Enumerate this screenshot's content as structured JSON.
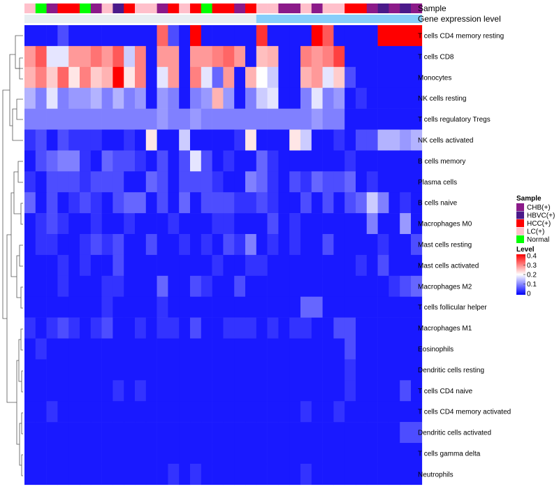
{
  "chart_data": {
    "type": "heatmap",
    "annotation_labels": {
      "sample": "Sample",
      "expression": "Gene expression level"
    },
    "rows": [
      "T cells CD4 memory resting",
      "T cells CD8",
      "Monocytes",
      "NK cells resting",
      "T cells regulatory  Tregs",
      "NK cells activated",
      "B cells memory",
      "Plasma cells",
      "B cells naive",
      "Macrophages M0",
      "Mast cells resting",
      "Mast cells activated",
      "Macrophages M2",
      "T cells follicular helper",
      "Macrophages M1",
      "Eosinophils",
      "Dendritic cells resting",
      "T cells CD4 naive",
      "T cells CD4 memory activated",
      "Dendritic cells activated",
      "T cells gamma delta",
      "Neutrophils"
    ],
    "column_samples": [
      "LC(+)",
      "Normal",
      "CHB(+)",
      "HCC(+)",
      "HCC(+)",
      "Normal",
      "CHB(+)",
      "LC(+)",
      "HBVC(+)",
      "HCC(+)",
      "LC(+)",
      "LC(+)",
      "CHB(+)",
      "HCC(+)",
      "LC(+)",
      "HCC(+)",
      "Normal",
      "HCC(+)",
      "HCC(+)",
      "CHB(+)",
      "HCC(+)",
      "LC(+)",
      "LC(+)",
      "CHB(+)",
      "CHB(+)",
      "LC(+)",
      "CHB(+)",
      "LC(+)",
      "LC(+)",
      "HCC(+)",
      "HCC(+)",
      "CHB(+)",
      "HBVC(+)",
      "CHB(+)",
      "HBVC(+)",
      "CHB(+)"
    ],
    "expression_bar": [
      "#e8eef2",
      "#e8eef2",
      "#e8eef2",
      "#e8eef2",
      "#e8eef2",
      "#e8eef2",
      "#e8eef2",
      "#e8eef2",
      "#e8eef2",
      "#e8eef2",
      "#e8eef2",
      "#e8eef2",
      "#e8eef2",
      "#e8eef2",
      "#e8eef2",
      "#e8eef2",
      "#e8eef2",
      "#e8eef2",
      "#e8eef2",
      "#e8eef2",
      "#e8eef2",
      "#87cefa",
      "#87cefa",
      "#87cefa",
      "#87cefa",
      "#87cefa",
      "#87cefa",
      "#87cefa",
      "#87cefa",
      "#87cefa",
      "#87cefa",
      "#87cefa",
      "#87cefa",
      "#87cefa",
      "#87cefa",
      "#87cefa"
    ],
    "values": [
      [
        0.02,
        0.02,
        0.02,
        0.06,
        0.02,
        0.02,
        0.02,
        0.02,
        0.02,
        0.02,
        0.02,
        0.02,
        0.32,
        0.06,
        0.02,
        0.4,
        0.02,
        0.02,
        0.02,
        0.02,
        0.02,
        0.36,
        0.02,
        0.02,
        0.02,
        0.02,
        0.4,
        0.33,
        0.02,
        0.02,
        0.02,
        0.02,
        0.4,
        0.4,
        0.4,
        0.4
      ],
      [
        0.28,
        0.33,
        0.18,
        0.18,
        0.28,
        0.28,
        0.31,
        0.28,
        0.33,
        0.16,
        0.3,
        0.02,
        0.28,
        0.28,
        0.02,
        0.28,
        0.28,
        0.3,
        0.32,
        0.28,
        0.02,
        0.25,
        0.26,
        0.02,
        0.02,
        0.3,
        0.28,
        0.3,
        0.35,
        0.02,
        0.02,
        0.02,
        0.02,
        0.02,
        0.02,
        0.02
      ],
      [
        0.26,
        0.3,
        0.24,
        0.32,
        0.22,
        0.3,
        0.24,
        0.26,
        0.4,
        0.22,
        0.3,
        0.02,
        0.18,
        0.28,
        0.02,
        0.3,
        0.18,
        0.08,
        0.28,
        0.02,
        0.26,
        0.2,
        0.16,
        0.02,
        0.02,
        0.26,
        0.28,
        0.18,
        0.24,
        0.06,
        0.02,
        0.02,
        0.02,
        0.02,
        0.02,
        0.02
      ],
      [
        0.14,
        0.1,
        0.18,
        0.1,
        0.12,
        0.12,
        0.14,
        0.1,
        0.14,
        0.1,
        0.12,
        0.02,
        0.12,
        0.1,
        0.02,
        0.1,
        0.12,
        0.26,
        0.12,
        0.02,
        0.1,
        0.16,
        0.18,
        0.02,
        0.02,
        0.1,
        0.18,
        0.1,
        0.12,
        0.02,
        0.04,
        0.02,
        0.02,
        0.02,
        0.02,
        0.02
      ],
      [
        0.1,
        0.1,
        0.1,
        0.1,
        0.1,
        0.1,
        0.1,
        0.1,
        0.1,
        0.1,
        0.1,
        0.1,
        0.12,
        0.1,
        0.1,
        0.12,
        0.1,
        0.1,
        0.1,
        0.1,
        0.1,
        0.1,
        0.1,
        0.1,
        0.1,
        0.1,
        0.12,
        0.1,
        0.1,
        0.02,
        0.02,
        0.02,
        0.02,
        0.02,
        0.02,
        0.02
      ],
      [
        0.04,
        0.06,
        0.02,
        0.06,
        0.04,
        0.04,
        0.04,
        0.02,
        0.02,
        0.04,
        0.02,
        0.22,
        0.02,
        0.02,
        0.16,
        0.02,
        0.02,
        0.02,
        0.02,
        0.04,
        0.22,
        0.02,
        0.02,
        0.02,
        0.22,
        0.16,
        0.02,
        0.02,
        0.04,
        0.02,
        0.06,
        0.06,
        0.14,
        0.14,
        0.12,
        0.14
      ],
      [
        0.02,
        0.06,
        0.08,
        0.1,
        0.1,
        0.04,
        0.02,
        0.08,
        0.06,
        0.06,
        0.04,
        0.02,
        0.06,
        0.02,
        0.06,
        0.18,
        0.06,
        0.02,
        0.04,
        0.02,
        0.02,
        0.08,
        0.04,
        0.02,
        0.02,
        0.02,
        0.02,
        0.02,
        0.02,
        0.04,
        0.02,
        0.02,
        0.02,
        0.02,
        0.02,
        0.02
      ],
      [
        0.04,
        0.02,
        0.06,
        0.06,
        0.06,
        0.04,
        0.06,
        0.06,
        0.06,
        0.02,
        0.02,
        0.08,
        0.06,
        0.02,
        0.06,
        0.06,
        0.06,
        0.04,
        0.02,
        0.02,
        0.1,
        0.08,
        0.04,
        0.02,
        0.06,
        0.04,
        0.08,
        0.06,
        0.06,
        0.08,
        0.02,
        0.04,
        0.02,
        0.02,
        0.02,
        0.02
      ],
      [
        0.08,
        0.02,
        0.06,
        0.02,
        0.04,
        0.06,
        0.04,
        0.02,
        0.06,
        0.08,
        0.08,
        0.02,
        0.06,
        0.02,
        0.08,
        0.02,
        0.06,
        0.06,
        0.06,
        0.04,
        0.04,
        0.06,
        0.04,
        0.02,
        0.02,
        0.06,
        0.02,
        0.06,
        0.02,
        0.06,
        0.08,
        0.16,
        0.1,
        0.02,
        0.04,
        0.02
      ],
      [
        0.02,
        0.04,
        0.06,
        0.04,
        0.02,
        0.02,
        0.04,
        0.02,
        0.02,
        0.04,
        0.02,
        0.02,
        0.02,
        0.04,
        0.02,
        0.02,
        0.02,
        0.04,
        0.04,
        0.02,
        0.02,
        0.02,
        0.06,
        0.02,
        0.04,
        0.02,
        0.02,
        0.02,
        0.02,
        0.02,
        0.02,
        0.1,
        0.02,
        0.02,
        0.12,
        0.02
      ],
      [
        0.02,
        0.04,
        0.04,
        0.02,
        0.02,
        0.04,
        0.06,
        0.04,
        0.06,
        0.02,
        0.02,
        0.06,
        0.02,
        0.02,
        0.04,
        0.02,
        0.04,
        0.02,
        0.06,
        0.04,
        0.1,
        0.02,
        0.04,
        0.02,
        0.04,
        0.02,
        0.02,
        0.06,
        0.02,
        0.02,
        0.02,
        0.02,
        0.04,
        0.02,
        0.02,
        0.06
      ],
      [
        0.02,
        0.02,
        0.02,
        0.04,
        0.02,
        0.04,
        0.02,
        0.02,
        0.06,
        0.02,
        0.02,
        0.02,
        0.02,
        0.02,
        0.02,
        0.02,
        0.02,
        0.04,
        0.02,
        0.02,
        0.04,
        0.04,
        0.02,
        0.02,
        0.02,
        0.02,
        0.02,
        0.02,
        0.02,
        0.02,
        0.04,
        0.02,
        0.06,
        0.02,
        0.02,
        0.02
      ],
      [
        0.02,
        0.02,
        0.02,
        0.04,
        0.02,
        0.02,
        0.02,
        0.04,
        0.04,
        0.02,
        0.02,
        0.02,
        0.08,
        0.02,
        0.02,
        0.06,
        0.04,
        0.02,
        0.02,
        0.06,
        0.02,
        0.02,
        0.02,
        0.02,
        0.02,
        0.02,
        0.02,
        0.02,
        0.02,
        0.02,
        0.02,
        0.02,
        0.02,
        0.04,
        0.06,
        0.08
      ],
      [
        0.02,
        0.02,
        0.02,
        0.02,
        0.02,
        0.02,
        0.02,
        0.04,
        0.02,
        0.02,
        0.02,
        0.02,
        0.04,
        0.02,
        0.02,
        0.02,
        0.02,
        0.02,
        0.02,
        0.02,
        0.02,
        0.02,
        0.02,
        0.02,
        0.02,
        0.08,
        0.08,
        0.02,
        0.02,
        0.02,
        0.02,
        0.02,
        0.02,
        0.02,
        0.02,
        0.02
      ],
      [
        0.04,
        0.02,
        0.04,
        0.06,
        0.04,
        0.02,
        0.04,
        0.06,
        0.02,
        0.02,
        0.04,
        0.02,
        0.04,
        0.04,
        0.02,
        0.06,
        0.02,
        0.02,
        0.04,
        0.04,
        0.04,
        0.02,
        0.04,
        0.02,
        0.04,
        0.04,
        0.02,
        0.02,
        0.06,
        0.06,
        0.02,
        0.02,
        0.02,
        0.02,
        0.02,
        0.02
      ],
      [
        0.02,
        0.04,
        0.02,
        0.02,
        0.02,
        0.02,
        0.02,
        0.02,
        0.02,
        0.02,
        0.02,
        0.02,
        0.02,
        0.02,
        0.02,
        0.02,
        0.02,
        0.02,
        0.02,
        0.02,
        0.02,
        0.02,
        0.02,
        0.02,
        0.02,
        0.02,
        0.02,
        0.02,
        0.02,
        0.06,
        0.02,
        0.02,
        0.02,
        0.02,
        0.02,
        0.02
      ],
      [
        0.02,
        0.02,
        0.02,
        0.02,
        0.02,
        0.02,
        0.02,
        0.02,
        0.02,
        0.02,
        0.02,
        0.02,
        0.02,
        0.02,
        0.02,
        0.02,
        0.02,
        0.02,
        0.02,
        0.02,
        0.02,
        0.02,
        0.02,
        0.02,
        0.02,
        0.02,
        0.02,
        0.02,
        0.02,
        0.04,
        0.02,
        0.02,
        0.02,
        0.02,
        0.02,
        0.02
      ],
      [
        0.02,
        0.02,
        0.02,
        0.02,
        0.02,
        0.02,
        0.02,
        0.02,
        0.04,
        0.02,
        0.04,
        0.02,
        0.02,
        0.02,
        0.02,
        0.02,
        0.02,
        0.02,
        0.02,
        0.02,
        0.02,
        0.02,
        0.02,
        0.02,
        0.02,
        0.02,
        0.02,
        0.02,
        0.02,
        0.04,
        0.02,
        0.02,
        0.02,
        0.02,
        0.06,
        0.02
      ],
      [
        0.02,
        0.02,
        0.04,
        0.02,
        0.02,
        0.02,
        0.02,
        0.02,
        0.02,
        0.02,
        0.02,
        0.02,
        0.02,
        0.02,
        0.02,
        0.02,
        0.02,
        0.02,
        0.02,
        0.02,
        0.02,
        0.02,
        0.02,
        0.02,
        0.02,
        0.04,
        0.02,
        0.02,
        0.04,
        0.02,
        0.02,
        0.02,
        0.02,
        0.02,
        0.02,
        0.02
      ],
      [
        0.02,
        0.02,
        0.02,
        0.02,
        0.02,
        0.02,
        0.02,
        0.02,
        0.02,
        0.02,
        0.02,
        0.02,
        0.02,
        0.02,
        0.02,
        0.02,
        0.02,
        0.02,
        0.02,
        0.02,
        0.02,
        0.02,
        0.02,
        0.02,
        0.02,
        0.02,
        0.02,
        0.02,
        0.02,
        0.02,
        0.02,
        0.02,
        0.02,
        0.02,
        0.06,
        0.06
      ],
      [
        0.02,
        0.02,
        0.02,
        0.02,
        0.02,
        0.02,
        0.02,
        0.02,
        0.02,
        0.02,
        0.02,
        0.02,
        0.02,
        0.02,
        0.02,
        0.02,
        0.02,
        0.02,
        0.02,
        0.02,
        0.02,
        0.02,
        0.02,
        0.02,
        0.02,
        0.02,
        0.02,
        0.02,
        0.02,
        0.02,
        0.02,
        0.02,
        0.02,
        0.02,
        0.02,
        0.02
      ],
      [
        0.02,
        0.02,
        0.02,
        0.02,
        0.02,
        0.02,
        0.02,
        0.02,
        0.02,
        0.02,
        0.02,
        0.02,
        0.02,
        0.04,
        0.02,
        0.04,
        0.02,
        0.02,
        0.02,
        0.02,
        0.02,
        0.02,
        0.02,
        0.02,
        0.02,
        0.04,
        0.02,
        0.02,
        0.02,
        0.02,
        0.02,
        0.02,
        0.02,
        0.02,
        0.02,
        0.02
      ]
    ],
    "legend": {
      "sample_title": "Sample",
      "sample_items": [
        {
          "label": "CHB(+)",
          "color": "#8b1a89"
        },
        {
          "label": "HBVC(+)",
          "color": "#4b1a8a"
        },
        {
          "label": "HCC(+)",
          "color": "#ff0000"
        },
        {
          "label": "LC(+)",
          "color": "#ffc0cb"
        },
        {
          "label": "Normal",
          "color": "#00ff00"
        }
      ],
      "level_title": "Level",
      "level_ticks": [
        "0.4",
        "0.3",
        "0.2",
        "0.1",
        "0"
      ],
      "level_range": [
        0,
        0.4
      ]
    },
    "color_scale": {
      "low": "#0000ff",
      "mid": "#ffffff",
      "high": "#ff0000"
    }
  }
}
